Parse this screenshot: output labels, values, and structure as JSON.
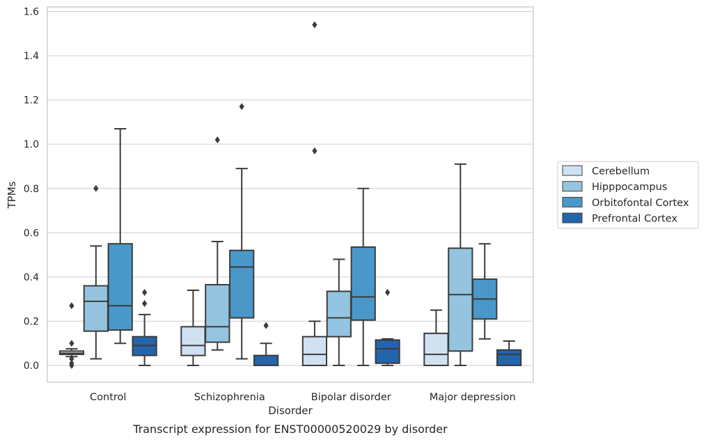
{
  "chart_data": {
    "type": "box",
    "caption": "Transcript expression for ENST00000520029 by disorder",
    "xlabel": "Disorder",
    "ylabel": "TPMs",
    "ylim": [
      -0.075,
      1.62
    ],
    "yticks": [
      0.0,
      0.2,
      0.4,
      0.6,
      0.8,
      1.0,
      1.2,
      1.4,
      1.6
    ],
    "ytick_labels": [
      "0.0",
      "0.2",
      "0.4",
      "0.6",
      "0.8",
      "1.0",
      "1.2",
      "1.4",
      "1.6"
    ],
    "grid": "horizontal",
    "legend_position": "right",
    "categories": [
      "Control",
      "Schizophrenia",
      "Bipolar disorder",
      "Major depression"
    ],
    "series": [
      {
        "name": "Cerebellum",
        "color": "#d0e1f2",
        "boxes": [
          {
            "whislo": 0.04,
            "q1": 0.05,
            "med": 0.055,
            "q3": 0.065,
            "whishi": 0.075,
            "fliers": [
              0.1,
              0.27,
              0.03,
              0.01,
              0.0
            ]
          },
          {
            "whislo": 0.0,
            "q1": 0.045,
            "med": 0.09,
            "q3": 0.175,
            "whishi": 0.34,
            "fliers": []
          },
          {
            "whislo": 0.0,
            "q1": 0.0,
            "med": 0.05,
            "q3": 0.13,
            "whishi": 0.2,
            "fliers": [
              1.54,
              0.97
            ]
          },
          {
            "whislo": 0.0,
            "q1": 0.0,
            "med": 0.05,
            "q3": 0.145,
            "whishi": 0.25,
            "fliers": []
          }
        ]
      },
      {
        "name": "Hipppocampus",
        "color": "#94c4df",
        "boxes": [
          {
            "whislo": 0.03,
            "q1": 0.155,
            "med": 0.29,
            "q3": 0.36,
            "whishi": 0.54,
            "fliers": [
              0.8
            ]
          },
          {
            "whislo": 0.07,
            "q1": 0.105,
            "med": 0.175,
            "q3": 0.365,
            "whishi": 0.56,
            "fliers": [
              1.02
            ]
          },
          {
            "whislo": 0.0,
            "q1": 0.13,
            "med": 0.215,
            "q3": 0.335,
            "whishi": 0.48,
            "fliers": []
          },
          {
            "whislo": 0.0,
            "q1": 0.065,
            "med": 0.32,
            "q3": 0.53,
            "whishi": 0.91,
            "fliers": []
          }
        ]
      },
      {
        "name": "Orbitofontal Cortex",
        "color": "#4a98c9",
        "boxes": [
          {
            "whislo": 0.1,
            "q1": 0.16,
            "med": 0.27,
            "q3": 0.55,
            "whishi": 1.07,
            "fliers": []
          },
          {
            "whislo": 0.03,
            "q1": 0.215,
            "med": 0.445,
            "q3": 0.52,
            "whishi": 0.89,
            "fliers": [
              1.17
            ]
          },
          {
            "whislo": 0.0,
            "q1": 0.205,
            "med": 0.31,
            "q3": 0.535,
            "whishi": 0.8,
            "fliers": []
          },
          {
            "whislo": 0.12,
            "q1": 0.21,
            "med": 0.3,
            "q3": 0.39,
            "whishi": 0.55,
            "fliers": []
          }
        ]
      },
      {
        "name": "Prefrontal Cortex",
        "color": "#2464ab",
        "boxes": [
          {
            "whislo": 0.0,
            "q1": 0.045,
            "med": 0.09,
            "q3": 0.13,
            "whishi": 0.23,
            "fliers": [
              0.33,
              0.28
            ]
          },
          {
            "whislo": 0.0,
            "q1": 0.0,
            "med": 0.0,
            "q3": 0.045,
            "whishi": 0.1,
            "fliers": [
              0.18
            ]
          },
          {
            "whislo": 0.0,
            "q1": 0.01,
            "med": 0.075,
            "q3": 0.115,
            "whishi": 0.12,
            "fliers": [
              0.33
            ]
          },
          {
            "whislo": 0.0,
            "q1": 0.0,
            "med": 0.05,
            "q3": 0.07,
            "whishi": 0.11,
            "fliers": []
          }
        ]
      }
    ]
  }
}
